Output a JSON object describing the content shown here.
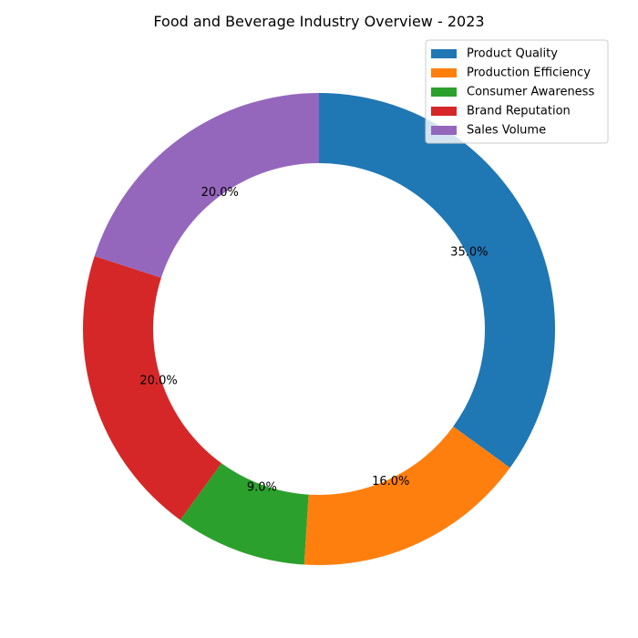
{
  "chart_data": {
    "type": "pie",
    "variant": "donut",
    "title": "Food and Beverage Industry Overview - 2023",
    "categories": [
      "Product Quality",
      "Production Efficiency",
      "Consumer Awareness",
      "Brand Reputation",
      "Sales Volume"
    ],
    "values": [
      35,
      16,
      9,
      20,
      20
    ],
    "percent_labels": [
      "35.0%",
      "16.0%",
      "9.0%",
      "20.0%",
      "20.0%"
    ],
    "colors": [
      "#1f77b4",
      "#ff7f0e",
      "#2ca02c",
      "#d62728",
      "#9467bd"
    ],
    "start_angle_deg": 90,
    "direction": "clockwise",
    "legend_position": "top-right"
  }
}
